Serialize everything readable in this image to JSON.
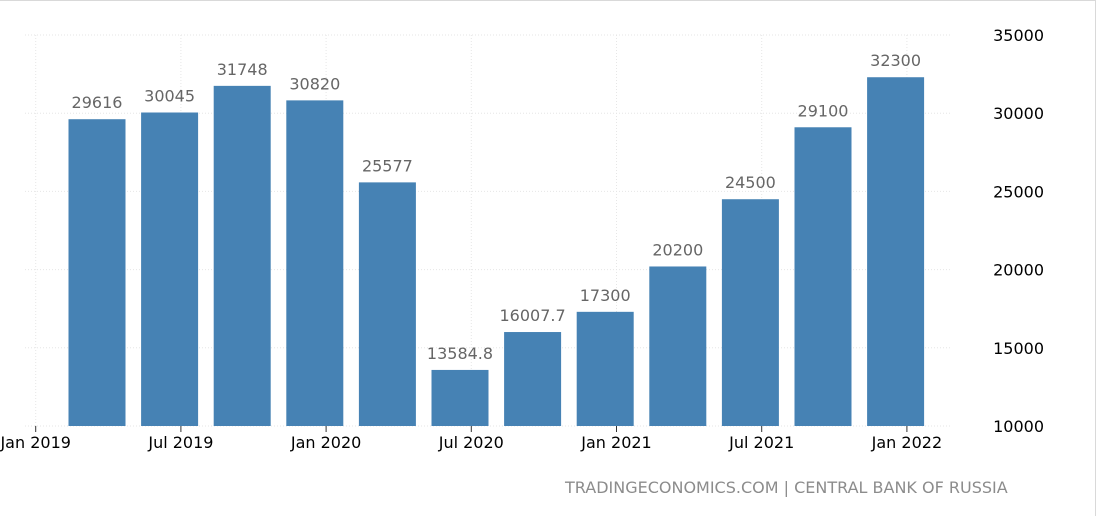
{
  "chart_data": {
    "type": "bar",
    "title": "",
    "xlabel": "",
    "ylabel": "",
    "categories": [
      "2019-Q1",
      "2019-Q2",
      "2019-Q3",
      "2019-Q4",
      "2020-Q1",
      "2020-Q2",
      "2020-Q3",
      "2020-Q4",
      "2021-Q1",
      "2021-Q2",
      "2021-Q3",
      "2021-Q4"
    ],
    "values": [
      29616,
      30045,
      31748,
      30820,
      25577,
      13584.8,
      16007.7,
      17300,
      20200,
      24500,
      29100,
      32300
    ],
    "value_labels": [
      "29616",
      "30045",
      "31748",
      "30820",
      "25577",
      "13584.8",
      "16007.7",
      "17300",
      "20200",
      "24500",
      "29100",
      "32300"
    ],
    "ylim": [
      10000,
      35000
    ],
    "y_ticks": [
      10000,
      15000,
      20000,
      25000,
      30000,
      35000
    ],
    "y_tick_labels": [
      "10000",
      "15000",
      "20000",
      "25000",
      "30000",
      "35000"
    ],
    "x_tick_labels": [
      "Jan 2019",
      "Jul 2019",
      "Jan 2020",
      "Jul 2020",
      "Jan 2021",
      "Jul 2021",
      "Jan 2022"
    ],
    "y_axis_side": "right",
    "grid": true,
    "bar_color": "#4682b4"
  },
  "source_text": "TRADINGECONOMICS.COM | CENTRAL BANK OF RUSSIA"
}
